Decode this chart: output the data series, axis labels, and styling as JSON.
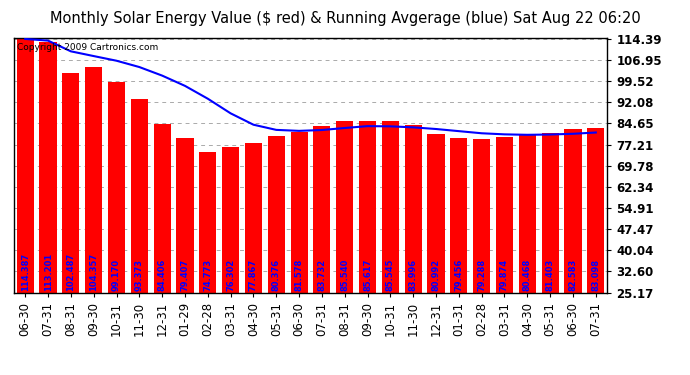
{
  "title": "Monthly Solar Energy Value ($ red) & Running Avgerage (blue) Sat Aug 22 06:20",
  "copyright": "Copyright 2009 Cartronics.com",
  "categories": [
    "06-30",
    "07-31",
    "08-31",
    "09-30",
    "10-31",
    "11-30",
    "12-31",
    "01-29",
    "02-28",
    "03-31",
    "04-30",
    "05-31",
    "06-30",
    "07-31",
    "08-31",
    "09-30",
    "10-31",
    "11-30",
    "12-31",
    "01-31",
    "02-28",
    "03-31",
    "04-30",
    "05-31",
    "06-30",
    "07-31"
  ],
  "bar_values": [
    114.387,
    113.201,
    102.487,
    104.357,
    99.17,
    93.373,
    84.406,
    79.407,
    74.773,
    76.302,
    77.867,
    80.376,
    81.578,
    83.732,
    85.54,
    85.617,
    85.545,
    83.996,
    80.992,
    79.456,
    79.288,
    79.874,
    80.468,
    81.403,
    82.583,
    83.098
  ],
  "running_avg": [
    114.387,
    113.794,
    110.025,
    108.358,
    106.72,
    104.496,
    101.483,
    97.874,
    93.351,
    88.207,
    84.207,
    82.386,
    82.041,
    82.337,
    83.049,
    83.706,
    83.631,
    83.274,
    82.694,
    81.942,
    81.196,
    80.812,
    80.652,
    80.755,
    81.014,
    81.461
  ],
  "bar_color": "#ff0000",
  "line_color": "#0000ff",
  "background_color": "#ffffff",
  "plot_bg_color": "#ffffff",
  "grid_color": "#aaaaaa",
  "title_color": "#000000",
  "bar_label_color": "#0000ff",
  "yticks": [
    25.17,
    32.6,
    40.04,
    47.47,
    54.91,
    62.34,
    69.78,
    77.21,
    84.65,
    92.08,
    99.52,
    106.95,
    114.39
  ],
  "ymin": 25.17,
  "ymax": 114.39,
  "title_fontsize": 10.5,
  "label_fontsize": 6.0,
  "tick_fontsize": 8.5,
  "copyright_fontsize": 6.5
}
